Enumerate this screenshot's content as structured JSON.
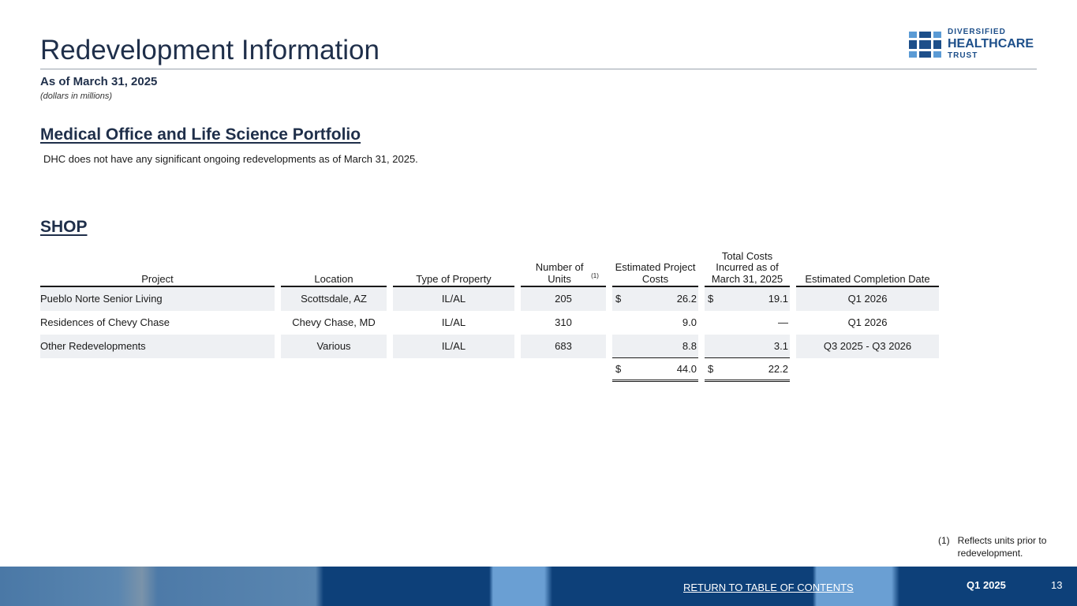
{
  "header": {
    "title": "Redevelopment Information",
    "as_of": "As of March 31, 2025",
    "units_note": "(dollars in millions)"
  },
  "logo": {
    "line1": "DIVERSIFIED",
    "line2": "HEALTHCARE",
    "line3": "TRUST"
  },
  "mob": {
    "heading": "Medical Office and Life Science Portfolio",
    "note": "DHC does not have any significant ongoing redevelopments as of March 31, 2025."
  },
  "shop": {
    "heading": "SHOP",
    "columns": [
      "Project",
      "Location",
      "Type of Property",
      "Number of Units",
      "Estimated Project Costs",
      "Total Costs Incurred as of March 31, 2025",
      "Estimated Completion Date"
    ],
    "units_footnote_ref": "(1)",
    "rows": [
      {
        "project": "Pueblo Norte Senior Living",
        "location": "Scottsdale, AZ",
        "type": "IL/AL",
        "units": "205",
        "est_cur": "$",
        "est": "26.2",
        "inc_cur": "$",
        "inc": "19.1",
        "date": "Q1 2026"
      },
      {
        "project": "Residences of Chevy Chase",
        "location": "Chevy Chase, MD",
        "type": "IL/AL",
        "units": "310",
        "est_cur": "",
        "est": "9.0",
        "inc_cur": "",
        "inc": "—",
        "date": "Q1 2026"
      },
      {
        "project": "Other Redevelopments",
        "location": "Various",
        "type": "IL/AL",
        "units": "683",
        "est_cur": "",
        "est": "8.8",
        "inc_cur": "",
        "inc": "3.1",
        "date": "Q3 2025 - Q3 2026"
      }
    ],
    "total": {
      "est_cur": "$",
      "est": "44.0",
      "inc_cur": "$",
      "inc": "22.2"
    }
  },
  "footnote": {
    "num": "(1)",
    "text": "Reflects units prior to redevelopment."
  },
  "footer": {
    "link": "RETURN TO TABLE OF CONTENTS",
    "quarter": "Q1 2025",
    "page": "13"
  },
  "colors": {
    "brand": "#1d4f8a",
    "title": "#1f2f4a",
    "footer": "#0d4079"
  }
}
